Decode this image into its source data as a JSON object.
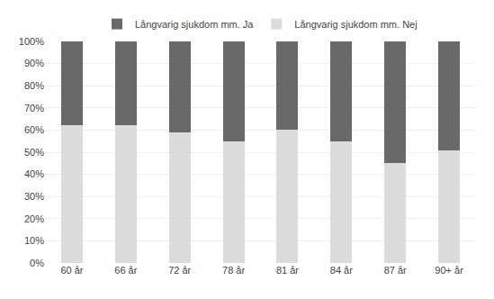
{
  "chart_data": {
    "type": "bar",
    "stacked": true,
    "categories": [
      "60 år",
      "66 år",
      "72 år",
      "78 år",
      "81 år",
      "84 år",
      "87 år",
      "90+ år"
    ],
    "series": [
      {
        "name": "Långvarig sjukdom mm. Nej",
        "color": "#dcdcdc",
        "values": [
          62,
          62,
          59,
          55,
          60,
          55,
          45,
          51
        ]
      },
      {
        "name": "Långvarig sjukdom mm. Ja",
        "color": "#696969",
        "values": [
          38,
          38,
          41,
          45,
          40,
          45,
          55,
          49
        ]
      }
    ],
    "ylim": [
      0,
      100
    ],
    "yticks": [
      {
        "value": 0,
        "label": "0%"
      },
      {
        "value": 10,
        "label": "10%"
      },
      {
        "value": 20,
        "label": "20%"
      },
      {
        "value": 30,
        "label": "30%"
      },
      {
        "value": 40,
        "label": "40%"
      },
      {
        "value": 50,
        "label": "50%"
      },
      {
        "value": 60,
        "label": "60%"
      },
      {
        "value": 70,
        "label": "70%"
      },
      {
        "value": 80,
        "label": "80%"
      },
      {
        "value": 90,
        "label": "90%"
      },
      {
        "value": 100,
        "label": "100%"
      }
    ],
    "grid": true,
    "legend": "top"
  }
}
